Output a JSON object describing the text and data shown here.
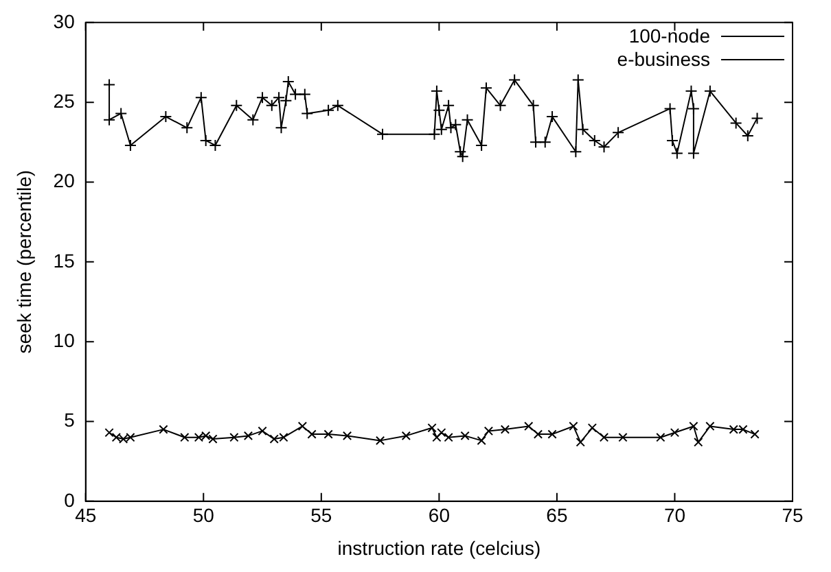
{
  "chart_data": {
    "type": "line",
    "xlabel": "instruction rate (celcius)",
    "ylabel": "seek time (percentile)",
    "xlim": [
      45,
      75
    ],
    "xticks": [
      45,
      50,
      55,
      60,
      65,
      70,
      75
    ],
    "ylim": [
      0,
      30
    ],
    "yticks": [
      0,
      5,
      10,
      15,
      20,
      25,
      30
    ],
    "grid": false,
    "legend": "top right",
    "marker": "cross",
    "series": [
      {
        "name": "100-node",
        "color": "#000000",
        "x": [
          46.0,
          46.0,
          46.5,
          46.9,
          48.4,
          49.3,
          49.9,
          50.1,
          50.5,
          51.4,
          52.1,
          52.5,
          52.9,
          53.2,
          53.3,
          53.5,
          53.6,
          53.9,
          54.3,
          54.4,
          55.3,
          55.7,
          57.6,
          59.8,
          59.9,
          60.0,
          60.1,
          60.4,
          60.5,
          60.7,
          60.9,
          61.0,
          61.2,
          61.8,
          62.0,
          62.6,
          63.2,
          64.0,
          64.1,
          64.5,
          64.8,
          65.8,
          65.9,
          66.1,
          66.6,
          67.0,
          67.6,
          69.8,
          69.9,
          70.1,
          70.7,
          70.8,
          70.8,
          71.5,
          72.6,
          73.1,
          73.5
        ],
        "values": [
          26.1,
          23.9,
          24.3,
          22.3,
          24.1,
          23.4,
          25.3,
          22.6,
          22.3,
          24.8,
          23.9,
          25.3,
          24.8,
          25.3,
          23.4,
          25.1,
          26.3,
          25.5,
          25.5,
          24.3,
          24.5,
          24.8,
          23.0,
          23.0,
          25.7,
          24.5,
          23.3,
          24.8,
          23.4,
          23.6,
          21.9,
          21.6,
          23.9,
          22.3,
          25.9,
          24.8,
          26.4,
          24.8,
          22.5,
          22.5,
          24.1,
          21.9,
          26.4,
          23.3,
          22.6,
          22.2,
          23.1,
          24.6,
          22.6,
          21.8,
          25.7,
          24.6,
          21.8,
          25.7,
          23.7,
          22.9,
          24.0
        ]
      },
      {
        "name": "e-business",
        "color": "#000000",
        "x": [
          46.0,
          46.3,
          46.6,
          46.9,
          48.3,
          49.2,
          49.8,
          50.1,
          50.4,
          51.3,
          51.9,
          52.5,
          53.0,
          53.4,
          54.2,
          54.6,
          55.3,
          56.1,
          57.5,
          58.6,
          59.7,
          59.9,
          60.1,
          60.4,
          61.1,
          61.8,
          62.1,
          62.8,
          63.8,
          64.2,
          64.8,
          65.7,
          66.0,
          66.5,
          67.0,
          67.8,
          69.4,
          70.0,
          70.8,
          71.0,
          71.5,
          72.5,
          72.9,
          73.4
        ],
        "values": [
          4.3,
          4.0,
          3.9,
          4.0,
          4.5,
          4.0,
          4.0,
          4.1,
          3.9,
          4.0,
          4.1,
          4.4,
          3.9,
          4.0,
          4.7,
          4.2,
          4.2,
          4.1,
          3.8,
          4.1,
          4.6,
          4.0,
          4.3,
          4.0,
          4.1,
          3.8,
          4.4,
          4.5,
          4.7,
          4.2,
          4.2,
          4.7,
          3.7,
          4.6,
          4.0,
          4.0,
          4.0,
          4.3,
          4.7,
          3.7,
          4.7,
          4.5,
          4.5,
          4.2
        ]
      }
    ]
  }
}
